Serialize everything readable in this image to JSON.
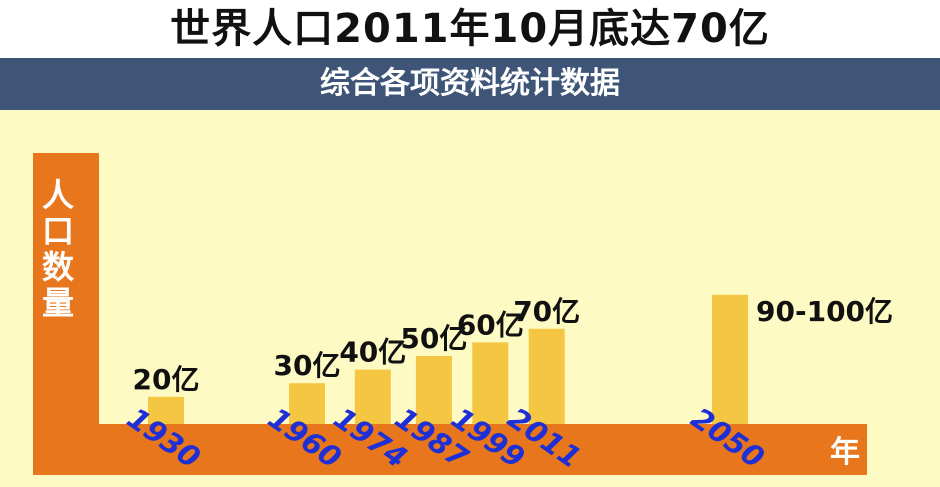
{
  "title": "世界人口2011年10月底达70亿",
  "subtitle": "综合各项资料统计数据",
  "chart_data": {
    "type": "bar",
    "categories": [
      "1930",
      "1960",
      "1974",
      "1987",
      "1999",
      "2011",
      "2050"
    ],
    "values": [
      20,
      30,
      40,
      50,
      60,
      70,
      95
    ],
    "value_labels": [
      "20亿",
      "30亿",
      "40亿",
      "50亿",
      "60亿",
      "70亿",
      "90-100亿"
    ],
    "ylabel": "人口数量",
    "xlabel": "年",
    "unit": "亿",
    "ylim": [
      0,
      100
    ],
    "grid": false,
    "colors": {
      "bar": "#f4c641",
      "axis": "#e8761c",
      "tick": "#1f2fd6",
      "banner": "#3f5578",
      "background": "#fefac4"
    }
  }
}
